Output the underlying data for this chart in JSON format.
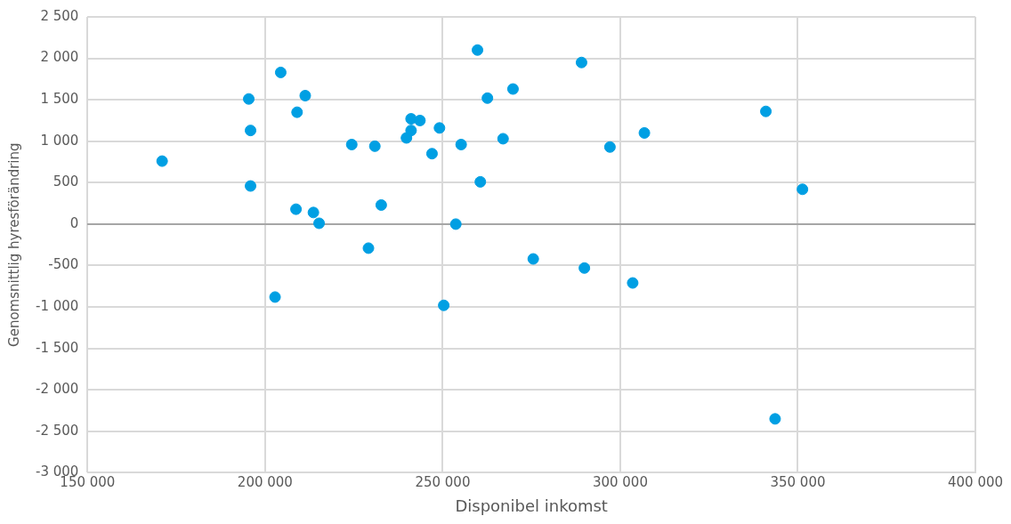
{
  "chart_data": {
    "type": "scatter",
    "xlabel": "Disponibel inkomst",
    "ylabel": "Genomsnittlig hyresförändring",
    "grid": true,
    "legend": false,
    "marker": "circle",
    "xlim": [
      150000,
      400000
    ],
    "xticks": [
      {
        "value": 150000,
        "label": "150 000"
      },
      {
        "value": 200000,
        "label": "200 000"
      },
      {
        "value": 250000,
        "label": "250 000"
      },
      {
        "value": 300000,
        "label": "300 000"
      },
      {
        "value": 350000,
        "label": "350 000"
      },
      {
        "value": 400000,
        "label": "400 000"
      }
    ],
    "ylim": [
      -3000,
      2500
    ],
    "yticks": [
      {
        "value": -3000,
        "label": "-3 000"
      },
      {
        "value": -2500,
        "label": "-2 500"
      },
      {
        "value": -2000,
        "label": "-2 000"
      },
      {
        "value": -1500,
        "label": "-1 500"
      },
      {
        "value": -1000,
        "label": "-1 000"
      },
      {
        "value": -500,
        "label": "-500"
      },
      {
        "value": 0,
        "label": "0"
      },
      {
        "value": 500,
        "label": "500"
      },
      {
        "value": 1000,
        "label": "1 000"
      },
      {
        "value": 1500,
        "label": "1 500"
      },
      {
        "value": 2000,
        "label": "2 000"
      },
      {
        "value": 2500,
        "label": "2 500"
      }
    ],
    "x": [
      171000,
      195400,
      195900,
      195900,
      204400,
      202800,
      209000,
      208700,
      211300,
      213600,
      215200,
      224400,
      230900,
      229100,
      232700,
      239800,
      241100,
      241100,
      243600,
      247000,
      249100,
      250300,
      253700,
      255200,
      259800,
      260600,
      262600,
      267000,
      269800,
      275500,
      289100,
      289900,
      297100,
      303500,
      306800,
      341000,
      343600,
      351300
    ],
    "series": [
      {
        "color": "#009fe3",
        "values": [
          760,
          1510,
          1130,
          460,
          1830,
          -880,
          1350,
          180,
          1550,
          140,
          10,
          960,
          940,
          -290,
          230,
          1040,
          1270,
          1130,
          1250,
          850,
          1160,
          -980,
          0,
          960,
          2100,
          510,
          1520,
          1030,
          1630,
          -420,
          1950,
          -530,
          930,
          -710,
          1100,
          1360,
          -2350,
          420
        ]
      }
    ]
  }
}
